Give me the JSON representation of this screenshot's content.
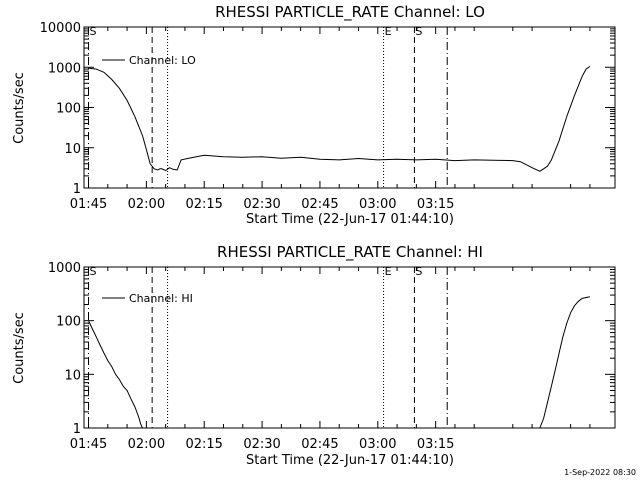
{
  "footer": {
    "stamp": "1-Sep-2022 08:30"
  },
  "chart_data": [
    {
      "type": "line",
      "title": "RHESSI PARTICLE_RATE Channel: LO",
      "xlabel": "Start Time (22-Jun-17 01:44:10)",
      "ylabel": "Counts/sec",
      "yscale": "log",
      "ylim": [
        1,
        10000
      ],
      "xlim_min": [
        -1.17,
        136.5
      ],
      "x_ticks": [
        "01:45",
        "02:00",
        "02:15",
        "02:30",
        "02:45",
        "03:00",
        "03:15"
      ],
      "y_ticks": [
        "1",
        "10",
        "100",
        "1000",
        "10000"
      ],
      "legend": {
        "position": "top-left",
        "entries": [
          "Channel: LO"
        ]
      },
      "series": [
        {
          "name": "Channel: LO",
          "x": [
            0,
            2,
            4,
            6,
            8,
            10,
            12,
            14,
            15,
            16,
            17,
            18,
            18.5,
            19,
            20,
            21,
            22,
            23,
            24,
            26,
            30,
            35,
            40,
            45,
            50,
            55,
            60,
            65,
            70,
            75,
            80,
            85,
            90,
            95,
            100,
            105,
            110,
            112,
            115,
            117,
            118,
            119,
            120,
            122,
            124,
            126,
            128,
            129,
            130
          ],
          "values": [
            950,
            900,
            750,
            500,
            300,
            150,
            60,
            20,
            9,
            4,
            3,
            2.8,
            3,
            3,
            2.7,
            3.2,
            2.9,
            2.8,
            5,
            5.5,
            6.5,
            6,
            5.8,
            6,
            5.5,
            5.8,
            5.2,
            5,
            5.4,
            5,
            5.2,
            5,
            5.2,
            4.8,
            5,
            4.9,
            4.8,
            4.5,
            3.2,
            2.6,
            3,
            3.5,
            5,
            15,
            60,
            200,
            600,
            900,
            1050
          ]
        }
      ],
      "vlines": [
        {
          "label": "S",
          "x": 0,
          "style": "dashdot"
        },
        {
          "label": "",
          "x": 16.5,
          "style": "dashed"
        },
        {
          "label": "",
          "x": 20.5,
          "style": "dotted"
        },
        {
          "label": "E",
          "x": 76.5,
          "style": "dotted"
        },
        {
          "label": "S",
          "x": 84.5,
          "style": "dashed"
        },
        {
          "label": "",
          "x": 93,
          "style": "dashdot"
        }
      ]
    },
    {
      "type": "line",
      "title": "RHESSI PARTICLE_RATE Channel: HI",
      "xlabel": "Start Time (22-Jun-17 01:44:10)",
      "ylabel": "Counts/sec",
      "yscale": "log",
      "ylim": [
        1,
        1000
      ],
      "x_ticks": [
        "01:45",
        "02:00",
        "02:15",
        "02:30",
        "02:45",
        "03:00",
        "03:15"
      ],
      "y_ticks": [
        "1",
        "10",
        "100",
        "1000"
      ],
      "legend": {
        "position": "top-left",
        "entries": [
          "Channel: HI"
        ]
      },
      "series": [
        {
          "name": "Channel: HI",
          "x": [
            0,
            1,
            2,
            3,
            4,
            5,
            6,
            7,
            8,
            9,
            10,
            11,
            12,
            13,
            13.5,
            14
          ],
          "values": [
            100,
            70,
            50,
            35,
            25,
            18,
            14,
            10,
            8,
            6,
            5,
            3.5,
            2.5,
            1.6,
            1.2,
            1
          ]
        },
        {
          "name": "Channel: HI",
          "x": [
            117,
            118,
            119,
            120,
            121,
            122,
            123,
            124,
            125,
            126,
            127,
            128,
            129,
            130
          ],
          "values": [
            1,
            1.5,
            3,
            6,
            12,
            25,
            50,
            90,
            140,
            190,
            230,
            260,
            270,
            280
          ]
        }
      ]
    }
  ]
}
